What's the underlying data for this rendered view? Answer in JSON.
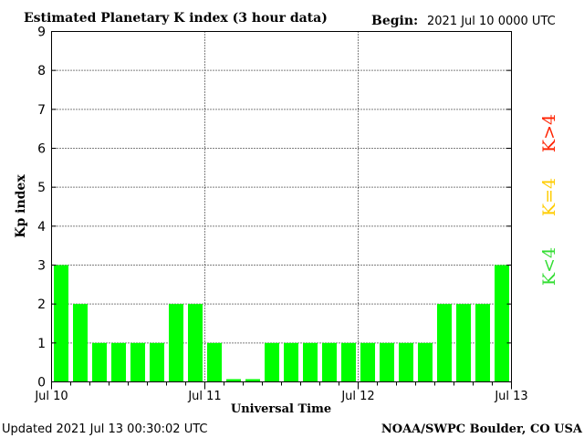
{
  "chart_data": {
    "type": "bar",
    "title": "Estimated Planetary K index (3 hour data)",
    "begin_label": "Begin:",
    "begin_value": "2021 Jul 10 0000 UTC",
    "xlabel": "Universal Time",
    "ylabel": "Kp index",
    "ylim": [
      0,
      9
    ],
    "yticks": [
      "0",
      "1",
      "2",
      "3",
      "4",
      "5",
      "6",
      "7",
      "8",
      "9"
    ],
    "xticks": [
      "Jul 10",
      "Jul 11",
      "Jul 12",
      "Jul 13"
    ],
    "grid": true,
    "values": [
      3,
      2,
      1,
      1,
      1,
      1,
      2,
      2,
      1,
      0.07,
      0.07,
      1,
      1,
      1,
      1,
      1,
      1,
      1,
      1,
      1,
      2,
      2,
      2,
      3
    ],
    "bar_color": "#00ff00",
    "legend": [
      {
        "label": "K<4",
        "color": "#33dd33"
      },
      {
        "label": "K=4",
        "color": "#ffcc00"
      },
      {
        "label": "K>4",
        "color": "#ff2200"
      }
    ],
    "legend_placement": "right"
  },
  "footer": {
    "updated": "Updated 2021 Jul 13 00:30:02 UTC",
    "source": "NOAA/SWPC Boulder, CO USA"
  }
}
